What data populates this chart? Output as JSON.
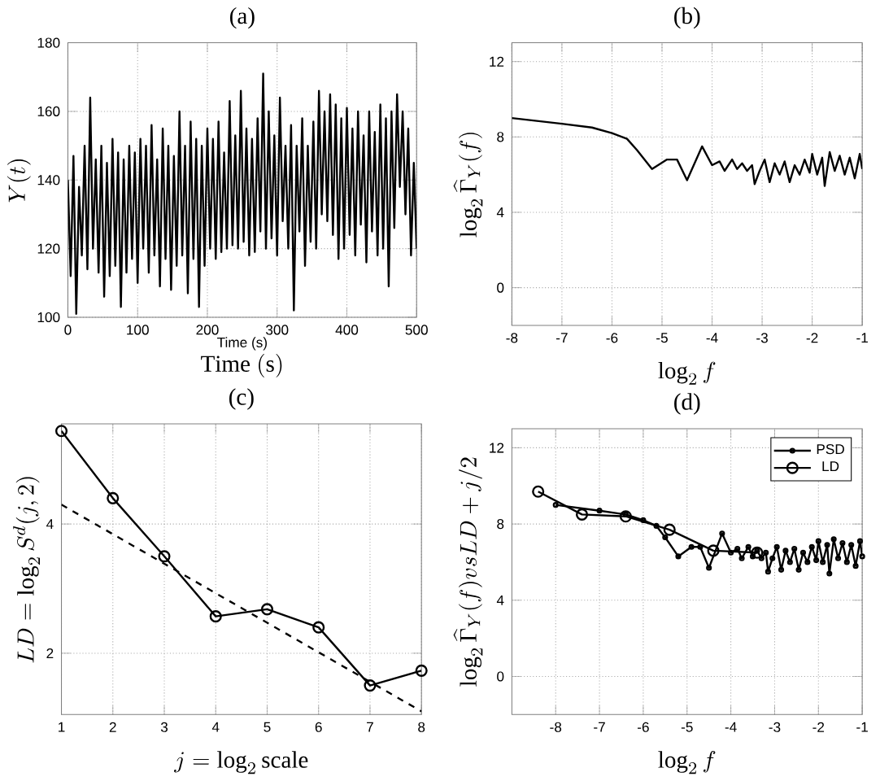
{
  "chart_data": [
    {
      "type": "line",
      "title": "(a)",
      "xlabel": "\\mathrm{Time\\ (s)}",
      "ylabel": "Y(t)",
      "annotations": [
        "Time (s)"
      ],
      "xlim": [
        0,
        500
      ],
      "ylim": [
        100,
        180
      ],
      "xticks": [
        0,
        100,
        200,
        300,
        400,
        500
      ],
      "yticks": [
        100,
        120,
        140,
        160,
        180
      ],
      "grid": true,
      "series": [
        {
          "color": "#000000",
          "x": [
            0,
            4,
            8,
            12,
            16,
            20,
            24,
            28,
            32,
            36,
            40,
            44,
            48,
            52,
            56,
            60,
            64,
            68,
            72,
            76,
            80,
            84,
            88,
            92,
            96,
            100,
            104,
            108,
            112,
            116,
            120,
            124,
            128,
            132,
            136,
            140,
            144,
            148,
            152,
            156,
            160,
            164,
            168,
            172,
            176,
            180,
            184,
            188,
            192,
            196,
            200,
            204,
            208,
            212,
            216,
            220,
            224,
            228,
            232,
            236,
            240,
            244,
            248,
            252,
            256,
            260,
            264,
            268,
            272,
            276,
            280,
            284,
            288,
            292,
            296,
            300,
            304,
            308,
            312,
            316,
            320,
            324,
            328,
            332,
            336,
            340,
            344,
            348,
            352,
            356,
            360,
            364,
            368,
            372,
            376,
            380,
            384,
            388,
            392,
            396,
            400,
            404,
            408,
            412,
            416,
            420,
            424,
            428,
            432,
            436,
            440,
            444,
            448,
            452,
            456,
            460,
            464,
            468,
            472,
            476,
            480,
            484,
            488,
            492,
            496,
            500
          ],
          "values": [
            140,
            112,
            147,
            101,
            138,
            118,
            150,
            114,
            164,
            120,
            146,
            113,
            150,
            106,
            145,
            112,
            152,
            115,
            148,
            103,
            146,
            113,
            150,
            117,
            148,
            110,
            152,
            120,
            150,
            113,
            156,
            118,
            146,
            109,
            155,
            117,
            150,
            108,
            147,
            115,
            160,
            118,
            150,
            107,
            157,
            117,
            152,
            103,
            150,
            115,
            155,
            120,
            152,
            117,
            157,
            119,
            148,
            120,
            163,
            121,
            153,
            120,
            166,
            122,
            155,
            118,
            152,
            119,
            158,
            125,
            171,
            120,
            160,
            123,
            153,
            118,
            164,
            128,
            150,
            120,
            156,
            102,
            150,
            125,
            158,
            115,
            150,
            122,
            157,
            120,
            166,
            130,
            160,
            128,
            165,
            124,
            162,
            117,
            158,
            120,
            161,
            124,
            155,
            118,
            160,
            127,
            153,
            116,
            160,
            125,
            154,
            118,
            162,
            120,
            158,
            109,
            160,
            126,
            165,
            138,
            160,
            130,
            155,
            118,
            145,
            120
          ]
        }
      ]
    },
    {
      "type": "line",
      "title": "(b)",
      "xlabel": "\\log_2 f",
      "ylabel": "\\log_2 \\widehat{\\Gamma}_Y(f)",
      "xlim": [
        -8,
        -1
      ],
      "ylim": [
        -2,
        13
      ],
      "xticks": [
        -8,
        -7,
        -6,
        -5,
        -4,
        -3,
        -2,
        -1
      ],
      "yticks": [
        0,
        4,
        8,
        12
      ],
      "grid": true,
      "series": [
        {
          "color": "#000000",
          "x": [
            -8,
            -7,
            -6.4,
            -6,
            -5.7,
            -5.5,
            -5.2,
            -4.9,
            -4.7,
            -4.5,
            -4.2,
            -4.0,
            -3.85,
            -3.75,
            -3.6,
            -3.5,
            -3.4,
            -3.3,
            -3.2,
            -3.15,
            -3.05,
            -2.95,
            -2.85,
            -2.75,
            -2.65,
            -2.55,
            -2.45,
            -2.35,
            -2.25,
            -2.15,
            -2.05,
            -2.0,
            -1.9,
            -1.8,
            -1.75,
            -1.65,
            -1.55,
            -1.45,
            -1.35,
            -1.25,
            -1.15,
            -1.05,
            -1.0
          ],
          "values": [
            9.0,
            8.7,
            8.5,
            8.2,
            7.9,
            7.3,
            6.3,
            6.8,
            6.8,
            5.7,
            7.5,
            6.5,
            6.7,
            6.2,
            6.8,
            6.3,
            6.6,
            6.2,
            6.5,
            5.5,
            6.2,
            6.8,
            5.6,
            6.6,
            6.0,
            6.7,
            5.6,
            6.5,
            6.0,
            6.8,
            6.1,
            7.1,
            6.0,
            6.9,
            5.4,
            7.2,
            6.2,
            7.0,
            6.0,
            6.9,
            5.8,
            7.1,
            6.3
          ]
        }
      ]
    },
    {
      "type": "line",
      "title": "(c)",
      "xlabel": "j = \\log_2 \\mathrm{scale}",
      "ylabel": "LD = \\log_2 S^d(j,2)",
      "xlim": [
        1,
        8
      ],
      "ylim": [
        1.05,
        5.55
      ],
      "xticks": [
        1,
        2,
        3,
        4,
        5,
        6,
        7,
        8
      ],
      "yticks": [
        2,
        4
      ],
      "grid": true,
      "series": [
        {
          "color": "#000000",
          "marker": "circle",
          "x": [
            1,
            2,
            3,
            4,
            5,
            6,
            7,
            8
          ],
          "values": [
            5.44,
            4.4,
            3.5,
            2.57,
            2.68,
            2.4,
            1.5,
            1.73
          ]
        },
        {
          "color": "#000000",
          "line_style": "dashed",
          "x": [
            1,
            8
          ],
          "values": [
            4.3,
            1.1
          ]
        }
      ]
    },
    {
      "type": "line",
      "title": "(d)",
      "xlabel": "\\log_2 f",
      "ylabel": "\\log_2 \\widehat{\\Gamma}_Y(f) vs LD + j/2",
      "xlim": [
        -9,
        -1
      ],
      "ylim": [
        -2,
        13
      ],
      "xticks": [
        -8,
        -7,
        -6,
        -5,
        -4,
        -3,
        -2,
        -1
      ],
      "yticks": [
        0,
        4,
        8,
        12
      ],
      "grid": true,
      "legend": "top right",
      "series": [
        {
          "name": "PSD",
          "color": "#000000",
          "marker": "circle",
          "x": [
            -8,
            -7,
            -6.4,
            -6,
            -5.7,
            -5.5,
            -5.2,
            -4.9,
            -4.7,
            -4.5,
            -4.2,
            -4.0,
            -3.85,
            -3.75,
            -3.6,
            -3.5,
            -3.4,
            -3.3,
            -3.2,
            -3.15,
            -3.05,
            -2.95,
            -2.85,
            -2.75,
            -2.65,
            -2.55,
            -2.45,
            -2.35,
            -2.25,
            -2.15,
            -2.05,
            -2.0,
            -1.9,
            -1.8,
            -1.75,
            -1.65,
            -1.55,
            -1.45,
            -1.35,
            -1.25,
            -1.15,
            -1.05,
            -1.0
          ],
          "values": [
            9.0,
            8.7,
            8.5,
            8.2,
            7.9,
            7.3,
            6.3,
            6.8,
            6.8,
            5.7,
            7.5,
            6.5,
            6.7,
            6.2,
            6.8,
            6.3,
            6.6,
            6.2,
            6.5,
            5.5,
            6.2,
            6.8,
            5.6,
            6.6,
            6.0,
            6.7,
            5.6,
            6.5,
            6.0,
            6.8,
            6.1,
            7.1,
            6.0,
            6.9,
            5.4,
            7.2,
            6.2,
            7.0,
            6.0,
            6.9,
            5.8,
            7.1,
            6.3
          ]
        },
        {
          "name": "LD",
          "color": "#000000",
          "marker": "circle",
          "x": [
            -8.4,
            -7.4,
            -6.4,
            -5.4,
            -4.4,
            -3.4
          ],
          "values": [
            9.7,
            8.5,
            8.4,
            7.7,
            6.6,
            6.5
          ]
        }
      ]
    }
  ]
}
